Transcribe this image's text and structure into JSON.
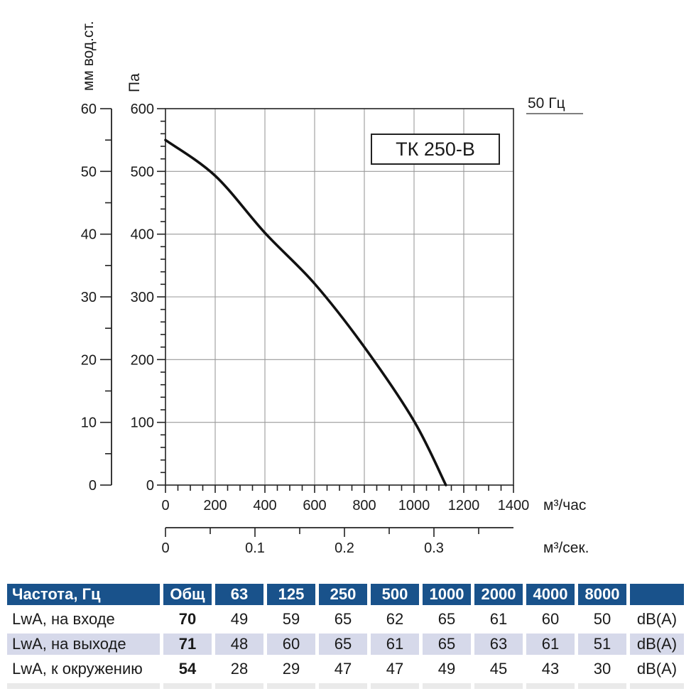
{
  "colors": {
    "table_header_bg": "#19528B",
    "table_alt_row_bg": "#D6D9EA",
    "table_cropped_row_bg": "#EAEAEA",
    "grid_line": "#9A9A9A",
    "axis_line": "#3A3A3A",
    "curve": "#111111",
    "header_text": "#FFFFFF"
  },
  "chart_data": {
    "type": "line",
    "model_label": "ТК 250-В",
    "frequency_note": "50 Гц",
    "x_axis": {
      "unit": "м³/час",
      "min": 0,
      "max": 1400,
      "major_step": 200,
      "minor_step": 50,
      "tick_labels": [
        0,
        200,
        400,
        600,
        800,
        1000,
        1200,
        1400
      ],
      "grid": true
    },
    "y_axis": {
      "unit": "Па",
      "min": 0,
      "max": 600,
      "major_step": 100,
      "minor_step": 20,
      "tick_labels": [
        0,
        100,
        200,
        300,
        400,
        500,
        600
      ],
      "grid": true
    },
    "y2_axis": {
      "unit": "мм вод.ст.",
      "min": 0,
      "max": 60,
      "major_step": 10,
      "minor_step": 5,
      "tick_labels": [
        0,
        10,
        20,
        30,
        40,
        50,
        60
      ]
    },
    "x2_axis": {
      "unit": "м³/сек.",
      "min": 0,
      "max": 0.35,
      "major_step": 0.1,
      "minor_step": 0.05,
      "factor_to_primary": 3600,
      "tick_labels": [
        "0",
        "0.1",
        "0.2",
        "0.3"
      ]
    },
    "series": [
      {
        "name": "ТК 250-В",
        "points": [
          [
            0,
            550
          ],
          [
            200,
            493
          ],
          [
            400,
            402
          ],
          [
            600,
            321
          ],
          [
            800,
            220
          ],
          [
            1000,
            102
          ],
          [
            1128,
            0
          ]
        ]
      }
    ]
  },
  "table": {
    "header": [
      "Частота, Гц",
      "Общ",
      "63",
      "125",
      "250",
      "500",
      "1000",
      "2000",
      "4000",
      "8000",
      ""
    ],
    "rows": [
      {
        "label": "LwA, на входе",
        "total": "70",
        "values": [
          "49",
          "59",
          "65",
          "62",
          "65",
          "61",
          "60",
          "50"
        ],
        "unit": "dB(A)"
      },
      {
        "label": "LwA, на выходе",
        "total": "71",
        "values": [
          "48",
          "60",
          "65",
          "61",
          "65",
          "63",
          "61",
          "51"
        ],
        "unit": "dB(A)"
      },
      {
        "label": "LwA, к окружению",
        "total": "54",
        "values": [
          "28",
          "29",
          "47",
          "47",
          "49",
          "45",
          "43",
          "30"
        ],
        "unit": "dB(A)"
      }
    ]
  }
}
